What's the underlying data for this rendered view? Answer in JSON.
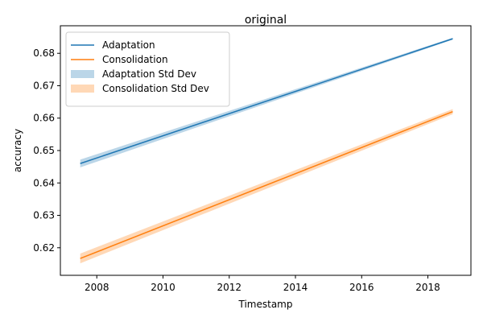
{
  "chart_data": {
    "type": "line",
    "title": "original",
    "xlabel": "Timestamp",
    "ylabel": "accuracy",
    "xlim": [
      2006.9,
      2019.3
    ],
    "ylim": [
      0.6115,
      0.6885
    ],
    "xticks": [
      2008,
      2010,
      2012,
      2014,
      2016,
      2018
    ],
    "yticks": [
      0.62,
      0.63,
      0.64,
      0.65,
      0.66,
      0.67,
      0.68
    ],
    "grid": false,
    "legend_position": "upper-left",
    "series": [
      {
        "name": "Adaptation",
        "color": "#1f77b4",
        "x": [
          2007.5,
          2018.75
        ],
        "y": [
          0.646,
          0.6845
        ],
        "band_name": "Adaptation Std Dev",
        "band_color": "#1f77b4",
        "band_halfwidth": [
          0.0012,
          0.0003
        ]
      },
      {
        "name": "Consolidation",
        "color": "#ff7f0e",
        "x": [
          2007.5,
          2018.75
        ],
        "y": [
          0.6167,
          0.662
        ],
        "band_name": "Consolidation Std Dev",
        "band_color": "#ff7f0e",
        "band_halfwidth": [
          0.0015,
          0.0008
        ]
      }
    ]
  }
}
